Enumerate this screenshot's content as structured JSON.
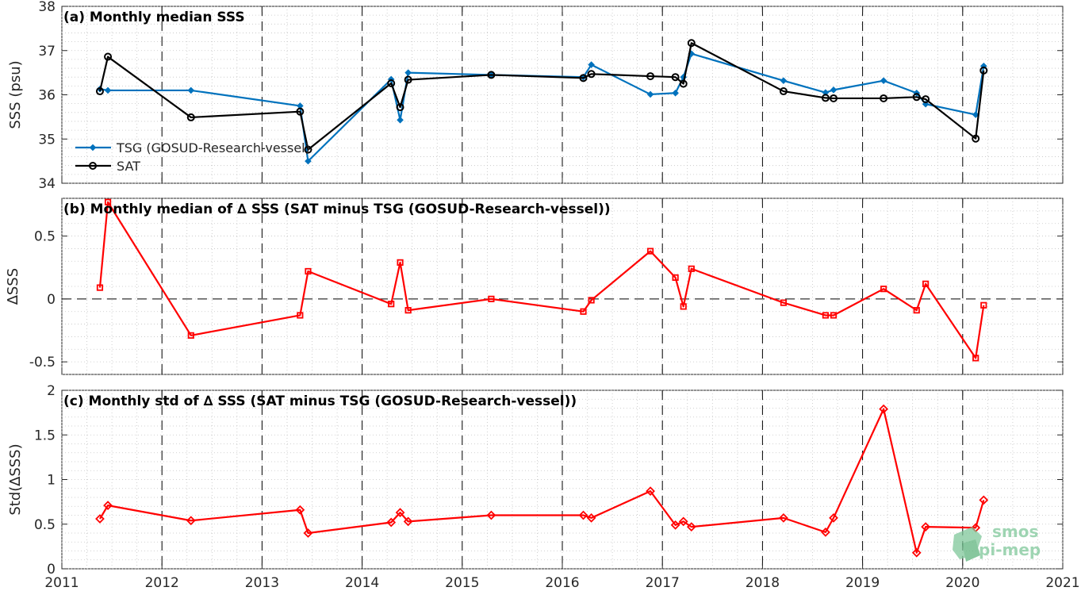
{
  "chart_data": [
    {
      "type": "line",
      "title": "(a) Monthly median SSS",
      "xlabel": "",
      "ylabel": "SSS (psu)",
      "xlim": [
        2011,
        2021
      ],
      "ylim": [
        34,
        38
      ],
      "yticks": [
        34,
        35,
        36,
        37,
        38
      ],
      "grid": "minor dotted",
      "legend_position": "lower-left",
      "series": [
        {
          "name": "TSG (GOSUD-Research-vessel)",
          "color": "#0072BD",
          "marker": "diamond",
          "x": [
            2011.38,
            2011.46,
            2012.29,
            2013.38,
            2013.46,
            2014.29,
            2014.38,
            2014.46,
            2015.29,
            2016.21,
            2016.29,
            2016.88,
            2017.13,
            2017.21,
            2017.29,
            2018.21,
            2018.63,
            2018.71,
            2019.21,
            2019.54,
            2019.63,
            2020.13,
            2020.21
          ],
          "y": [
            36.13,
            36.1,
            36.1,
            35.75,
            34.5,
            36.35,
            35.43,
            36.5,
            36.45,
            36.4,
            36.68,
            36.01,
            36.04,
            36.4,
            36.93,
            36.32,
            36.05,
            36.11,
            36.32,
            36.04,
            35.79,
            35.55,
            36.65
          ]
        },
        {
          "name": "SAT",
          "color": "#000000",
          "marker": "circle",
          "x": [
            2011.38,
            2011.46,
            2012.29,
            2013.38,
            2013.46,
            2014.29,
            2014.38,
            2014.46,
            2015.29,
            2016.21,
            2016.29,
            2016.88,
            2017.13,
            2017.21,
            2017.29,
            2018.21,
            2018.63,
            2018.71,
            2019.21,
            2019.54,
            2019.63,
            2020.13,
            2020.21
          ],
          "y": [
            36.08,
            36.86,
            35.49,
            35.62,
            34.76,
            36.26,
            35.72,
            36.34,
            36.45,
            36.38,
            36.47,
            36.42,
            36.4,
            36.25,
            37.17,
            36.08,
            35.93,
            35.92,
            35.92,
            35.95,
            35.9,
            35.01,
            36.55
          ]
        }
      ]
    },
    {
      "type": "line",
      "title": "(b) Monthly median of ∆ SSS (SAT minus TSG (GOSUD-Research-vessel))",
      "xlabel": "",
      "ylabel": "∆SSS",
      "xlim": [
        2011,
        2021
      ],
      "ylim": [
        -0.6,
        0.8
      ],
      "yticks": [
        -0.5,
        0,
        0.5
      ],
      "ytick_labels": [
        "-0.5",
        "0",
        "0.5"
      ],
      "grid": "minor dotted",
      "series": [
        {
          "color": "#FF0000",
          "marker": "square",
          "x": [
            2011.38,
            2011.46,
            2012.29,
            2013.38,
            2013.46,
            2014.29,
            2014.38,
            2014.46,
            2015.29,
            2016.21,
            2016.29,
            2016.88,
            2017.13,
            2017.21,
            2017.29,
            2018.21,
            2018.63,
            2018.71,
            2019.21,
            2019.54,
            2019.63,
            2020.13,
            2020.21
          ],
          "y": [
            0.09,
            0.77,
            -0.29,
            -0.13,
            0.22,
            -0.04,
            0.29,
            -0.09,
            0.0,
            -0.1,
            -0.01,
            0.38,
            0.17,
            -0.06,
            0.24,
            -0.03,
            -0.13,
            -0.13,
            0.08,
            -0.09,
            0.12,
            -0.47,
            -0.05
          ]
        }
      ]
    },
    {
      "type": "line",
      "title": "(c) Monthly std of ∆ SSS (SAT minus TSG (GOSUD-Research-vessel))",
      "xlabel": "",
      "ylabel": "Std(∆SSS)",
      "xlim": [
        2011,
        2021
      ],
      "ylim": [
        0,
        2
      ],
      "yticks": [
        0,
        0.5,
        1,
        1.5,
        2
      ],
      "ytick_labels": [
        "0",
        "0.5",
        "1",
        "1.5",
        "2"
      ],
      "xticks": [
        2011,
        2012,
        2013,
        2014,
        2015,
        2016,
        2017,
        2018,
        2019,
        2020,
        2021
      ],
      "grid": "minor dotted",
      "series": [
        {
          "color": "#FF0000",
          "marker": "diamond",
          "x": [
            2011.38,
            2011.46,
            2012.29,
            2013.38,
            2013.46,
            2014.29,
            2014.38,
            2014.46,
            2015.29,
            2016.21,
            2016.29,
            2016.88,
            2017.13,
            2017.21,
            2017.29,
            2018.21,
            2018.63,
            2018.71,
            2019.21,
            2019.54,
            2019.63,
            2020.13,
            2020.21
          ],
          "y": [
            0.56,
            0.71,
            0.54,
            0.66,
            0.4,
            0.52,
            0.63,
            0.53,
            0.6,
            0.6,
            0.57,
            0.87,
            0.49,
            0.53,
            0.47,
            0.57,
            0.41,
            0.57,
            1.79,
            0.18,
            0.47,
            0.46,
            0.77
          ]
        }
      ]
    }
  ],
  "watermark": {
    "line1": "smos",
    "line2": "pi-mep",
    "color": "#7fc79a"
  }
}
